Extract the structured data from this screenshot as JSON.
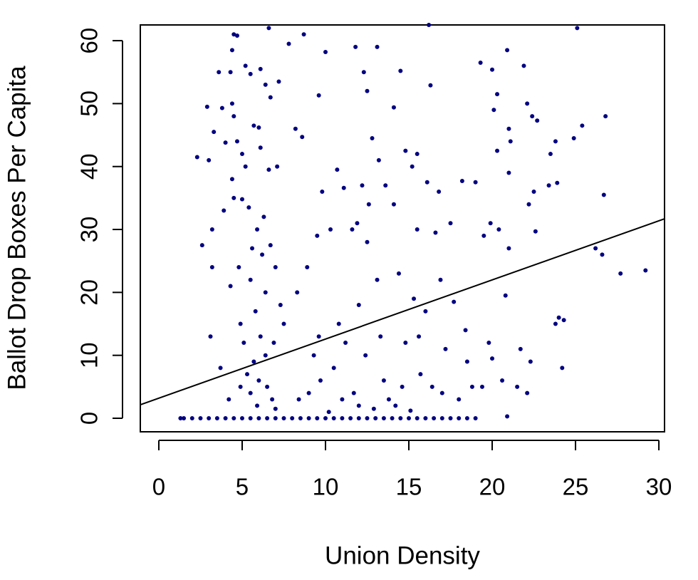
{
  "chart_data": {
    "type": "scatter",
    "x_label": "Union Density",
    "y_label": "Ballot Drop Boxes Per Capita",
    "color": "#000080",
    "xlim": [
      -1.11,
      30.34
    ],
    "ylim": [
      -2.15,
      62.5
    ],
    "xticks": [
      0,
      5,
      10,
      15,
      20,
      25,
      30
    ],
    "yticks": [
      0,
      10,
      20,
      30,
      40,
      50,
      60
    ],
    "grid": false,
    "trend_line": {
      "x": [
        -1.11,
        30.34
      ],
      "y": [
        2.15,
        31.7
      ],
      "color": "#000000"
    },
    "x": [
      1.3,
      1.5,
      2,
      2.5,
      3,
      3.5,
      4,
      4.5,
      5,
      5.5,
      6,
      6.5,
      7,
      7.5,
      8,
      8.5,
      9,
      9.5,
      10,
      10.5,
      11,
      11.5,
      12,
      12.5,
      13,
      13.5,
      14,
      14.5,
      15,
      15.5,
      16,
      16.5,
      17,
      17.5,
      18,
      18.5,
      19,
      4.5,
      4.7,
      6.6,
      4.4,
      3.6,
      4.3,
      5.2,
      5.5,
      6.1,
      6.4,
      7.2,
      7.8,
      8.7,
      10,
      11.8,
      13.1,
      16.2,
      3.8,
      4.4,
      4.5,
      6.7,
      9.6,
      12.3,
      12.5,
      14.5,
      14.1,
      16.3,
      3.3,
      4,
      4.7,
      5,
      5.2,
      5.7,
      6,
      6.1,
      6.6,
      7.1,
      8.2,
      8.6,
      4.4,
      3,
      3.2,
      3.9,
      4.5,
      5,
      5.4,
      5.9,
      6.3,
      5.6,
      6.2,
      6.7,
      7,
      4.8,
      4.3,
      5.5,
      6.4,
      7.3,
      7.5,
      6.9,
      5.8,
      4.9,
      5.1,
      6.1,
      6.4,
      5.7,
      5.3,
      6,
      6.5,
      4.9,
      5.5,
      6.8,
      4.2,
      5.9,
      7,
      3.7,
      3.1,
      3.2,
      2.6,
      2.9,
      2.3,
      8.3,
      8.9,
      9.5,
      10.3,
      9.8,
      10.7,
      11.6,
      11.1,
      11.9,
      12.2,
      12.6,
      12.8,
      13.2,
      13.6,
      14.1,
      14.8,
      15.2,
      15.5,
      15.5,
      16.1,
      16.8,
      16.6,
      17.5,
      18.2,
      12.5,
      13.1,
      14.4,
      15.3,
      16,
      16.9,
      17.7,
      18.4,
      17.2,
      15.6,
      14.8,
      13.3,
      12.4,
      11.2,
      10.5,
      9.7,
      9,
      8.4,
      11,
      12,
      12.9,
      13.8,
      14.6,
      15.7,
      16.4,
      17,
      18,
      18.8,
      19.4,
      10.2,
      11.7,
      13.5,
      14.2,
      15.1,
      9.3,
      10.8,
      12,
      9.6,
      19.3,
      20,
      20.3,
      20.9,
      20.1,
      21,
      21.1,
      21.9,
      22.1,
      22.4,
      22.7,
      23.8,
      23.5,
      24.9,
      25.1,
      25.4,
      26.8,
      21,
      22.5,
      23.4,
      23.9,
      20.3,
      19.9,
      19.5,
      20.4,
      21,
      22.2,
      22.6,
      19,
      26.7,
      26.2,
      26.6,
      27.7,
      29.2,
      24,
      24.3,
      23.8,
      20.8,
      24.2,
      21.7,
      22.3,
      20,
      20.6,
      21.5,
      22.1,
      20.9,
      19.8,
      18.5
    ],
    "values": [
      0,
      0,
      0,
      0,
      0,
      0,
      0,
      0,
      0,
      0,
      0,
      0,
      0,
      0,
      0,
      0,
      0,
      0,
      0,
      0,
      0,
      0,
      0,
      0,
      0,
      0,
      0,
      0,
      0,
      0,
      0,
      0,
      0,
      0,
      0,
      0,
      0,
      61,
      60.8,
      62,
      58.5,
      55,
      55,
      56,
      54.7,
      55.5,
      53,
      53.5,
      59.5,
      61,
      58.2,
      59,
      59,
      62.5,
      49.3,
      50,
      48,
      51,
      51.3,
      55,
      52,
      55.2,
      49.4,
      52.9,
      45.5,
      43.8,
      44,
      42,
      40,
      46.5,
      46.2,
      43,
      39.5,
      40,
      46,
      44.7,
      38,
      41,
      30,
      33,
      35,
      34.8,
      33.5,
      30,
      32,
      27,
      26,
      27.5,
      24,
      24,
      21,
      22,
      20,
      18,
      15,
      12,
      17,
      15,
      12,
      13,
      10,
      9,
      7,
      6,
      5,
      5,
      4,
      3,
      3,
      2,
      1.5,
      8,
      13,
      24,
      27.5,
      49.5,
      41.5,
      20,
      24,
      29,
      30,
      36,
      39.5,
      30,
      36.6,
      31,
      37,
      34,
      44.5,
      41,
      37,
      34,
      42.5,
      40,
      42,
      30,
      37.5,
      36,
      29.5,
      31,
      37.7,
      28,
      22,
      23,
      19,
      17,
      22,
      18.5,
      14,
      11,
      13,
      12,
      13,
      10,
      12,
      8,
      6,
      4,
      3,
      3,
      2,
      1.5,
      3,
      5,
      7,
      5,
      4,
      3,
      5,
      5,
      1,
      4,
      6,
      2,
      1.2,
      10,
      15,
      18,
      13,
      56.5,
      55.4,
      51.5,
      58.5,
      49,
      46,
      44,
      56,
      50,
      48,
      47.3,
      44,
      42,
      44.5,
      62,
      46.5,
      48,
      39,
      36,
      37,
      37.4,
      42.5,
      31,
      29,
      30,
      27,
      34,
      29.7,
      37.5,
      35.5,
      27,
      26,
      23,
      23.5,
      16,
      15.6,
      15,
      19.5,
      8,
      11,
      9,
      9.5,
      6,
      5,
      4,
      0.3,
      12,
      9
    ]
  }
}
